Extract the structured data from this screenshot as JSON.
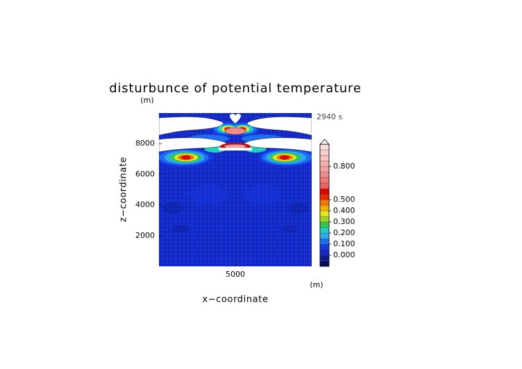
{
  "chart_data": {
    "type": "contour",
    "title": "disturbunce of potential temperature",
    "time_label": "2940 s",
    "x_label": "x−coordinate",
    "y_label": "z−coordinate",
    "x_unit": "(m)",
    "y_unit": "(m)",
    "xlim": [
      0,
      10000
    ],
    "ylim": [
      0,
      10000
    ],
    "xticks": [
      5000
    ],
    "yticks": [
      2000,
      4000,
      6000,
      8000
    ],
    "colorbar": {
      "levels": [
        -0.1,
        -0.05,
        0,
        0.05,
        0.1,
        0.15,
        0.2,
        0.25,
        0.3,
        0.35,
        0.4,
        0.45,
        0.5,
        0.55,
        0.6,
        0.65,
        0.7,
        0.75,
        0.8,
        0.85,
        0.9,
        0.95,
        1.0
      ],
      "colors": [
        "#0a0a5a",
        "#0d1a8c",
        "#1028c8",
        "#1438e6",
        "#1e6ef0",
        "#2ea8f0",
        "#20d0c0",
        "#30c850",
        "#9ad820",
        "#e8e820",
        "#f0b400",
        "#f07800",
        "#f02800",
        "#e00000",
        "#f06060",
        "#f07878",
        "#f08c8c",
        "#f4a0a0",
        "#f4b0b0",
        "#f8c0c0",
        "#f8d0d0",
        "#fce0e0"
      ],
      "ticks": [
        {
          "value": 0,
          "label": "0.000"
        },
        {
          "value": 0.1,
          "label": "0.100"
        },
        {
          "value": 0.2,
          "label": "0.200"
        },
        {
          "value": 0.3,
          "label": "0.300"
        },
        {
          "value": 0.4,
          "label": "0.400"
        },
        {
          "value": 0.5,
          "label": "0.500"
        },
        {
          "value": 0.8,
          "label": "0.800"
        }
      ]
    }
  }
}
